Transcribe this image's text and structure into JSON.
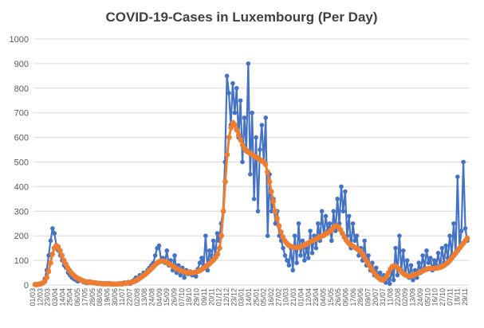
{
  "chart_data": {
    "type": "line",
    "title": "COVID-19-Cases in Luxembourg (Per Day)",
    "xlabel": "",
    "ylabel": "",
    "ylim": [
      0,
      1000
    ],
    "yticks": [
      0,
      100,
      200,
      300,
      400,
      500,
      600,
      700,
      800,
      900,
      1000
    ],
    "grid": true,
    "legend": "none",
    "x_tick_labels": [
      "01/03",
      "12/03",
      "23/03",
      "03/04",
      "14/04",
      "25/04",
      "06/05",
      "17/05",
      "28/05",
      "08/06",
      "19/06",
      "30/06",
      "11/07",
      "22/07",
      "02/08",
      "13/08",
      "24/08",
      "04/09",
      "15/09",
      "26/09",
      "07/10",
      "18/10",
      "29/10",
      "09/11",
      "20/11",
      "01/12",
      "12/12",
      "23/12",
      "03/01",
      "14/01",
      "25/01",
      "05/02",
      "16/02",
      "27/02",
      "10/03",
      "21/03",
      "01/04",
      "12/04",
      "23/04",
      "04/05",
      "15/05",
      "26/05",
      "06/06",
      "17/06",
      "28/06",
      "09/07",
      "20/07",
      "31/07",
      "11/08",
      "22/08",
      "02/09",
      "13/09",
      "24/09",
      "05/10",
      "16/10",
      "27/10",
      "07/11",
      "18/11",
      "29/11"
    ],
    "series": [
      {
        "color": "#4472c4",
        "values": [
          2,
          0,
          5,
          3,
          10,
          25,
          60,
          120,
          180,
          230,
          210,
          160,
          140,
          120,
          100,
          80,
          70,
          50,
          40,
          30,
          25,
          20,
          15,
          18,
          22,
          12,
          10,
          8,
          15,
          12,
          10,
          7,
          5,
          8,
          6,
          4,
          3,
          5,
          7,
          4,
          2,
          3,
          5,
          4,
          6,
          3,
          10,
          8,
          12,
          5,
          15,
          20,
          30,
          25,
          40,
          35,
          50,
          45,
          60,
          70,
          80,
          90,
          120,
          150,
          160,
          100,
          110,
          90,
          140,
          80,
          100,
          60,
          120,
          50,
          80,
          40,
          70,
          30,
          60,
          45,
          55,
          40,
          50,
          35,
          65,
          90,
          110,
          80,
          200,
          60,
          140,
          100,
          180,
          120,
          210,
          180,
          250,
          300,
          500,
          850,
          780,
          650,
          820,
          700,
          800,
          600,
          750,
          500,
          680,
          550,
          900,
          450,
          700,
          350,
          600,
          300,
          550,
          650,
          500,
          680,
          200,
          450,
          300,
          350,
          250,
          300,
          200,
          180,
          150,
          120,
          100,
          80,
          150,
          60,
          200,
          90,
          250,
          120,
          180,
          100,
          150,
          110,
          220,
          130,
          200,
          150,
          250,
          180,
          300,
          200,
          280,
          220,
          250,
          180,
          300,
          220,
          350,
          250,
          400,
          300,
          380,
          200,
          280,
          150,
          250,
          180,
          200,
          120,
          150,
          100,
          180,
          80,
          120,
          60,
          90,
          40,
          70,
          30,
          50,
          20,
          40,
          10,
          30,
          5,
          60,
          20,
          150,
          40,
          200,
          60,
          140,
          40,
          100,
          30,
          80,
          20,
          60,
          30,
          90,
          50,
          120,
          70,
          140,
          90,
          110,
          60,
          100,
          80,
          130,
          70,
          150,
          90,
          160,
          110,
          200,
          120,
          250,
          130,
          440,
          150,
          220,
          500,
          230,
          180
        ]
      },
      {
        "color": "#ed7d31",
        "values": [
          2,
          2,
          3,
          5,
          8,
          15,
          30,
          55,
          90,
          125,
          150,
          160,
          155,
          140,
          120,
          100,
          85,
          70,
          58,
          48,
          40,
          33,
          28,
          24,
          20,
          17,
          14,
          12,
          12,
          11,
          10,
          9,
          8,
          7,
          6,
          5,
          5,
          5,
          5,
          5,
          4,
          4,
          4,
          4,
          5,
          5,
          6,
          7,
          8,
          9,
          11,
          13,
          16,
          20,
          25,
          30,
          36,
          42,
          48,
          55,
          62,
          70,
          78,
          86,
          92,
          96,
          98,
          97,
          94,
          90,
          85,
          80,
          75,
          70,
          66,
          62,
          58,
          55,
          53,
          51,
          50,
          50,
          50,
          51,
          53,
          56,
          60,
          65,
          70,
          76,
          82,
          88,
          95,
          103,
          112,
          125,
          150,
          200,
          300,
          420,
          530,
          600,
          640,
          660,
          650,
          630,
          610,
          590,
          570,
          555,
          545,
          540,
          535,
          530,
          525,
          520,
          515,
          510,
          505,
          500,
          490,
          460,
          420,
          380,
          340,
          300,
          270,
          240,
          215,
          195,
          180,
          170,
          162,
          158,
          155,
          153,
          152,
          153,
          155,
          158,
          162,
          166,
          170,
          174,
          178,
          182,
          186,
          190,
          194,
          198,
          202,
          206,
          210,
          215,
          222,
          230,
          238,
          240,
          235,
          225,
          210,
          195,
          182,
          172,
          165,
          160,
          155,
          150,
          145,
          140,
          130,
          118,
          105,
          92,
          80,
          68,
          56,
          45,
          35,
          28,
          22,
          20,
          25,
          35,
          50,
          65,
          75,
          78,
          75,
          68,
          60,
          52,
          45,
          40,
          37,
          36,
          37,
          40,
          43,
          46,
          50,
          54,
          58,
          62,
          65,
          67,
          68,
          68,
          68,
          69,
          70,
          72,
          75,
          80,
          86,
          92,
          100,
          110,
          120,
          130,
          140,
          150,
          160,
          170,
          180,
          190
        ]
      }
    ]
  }
}
